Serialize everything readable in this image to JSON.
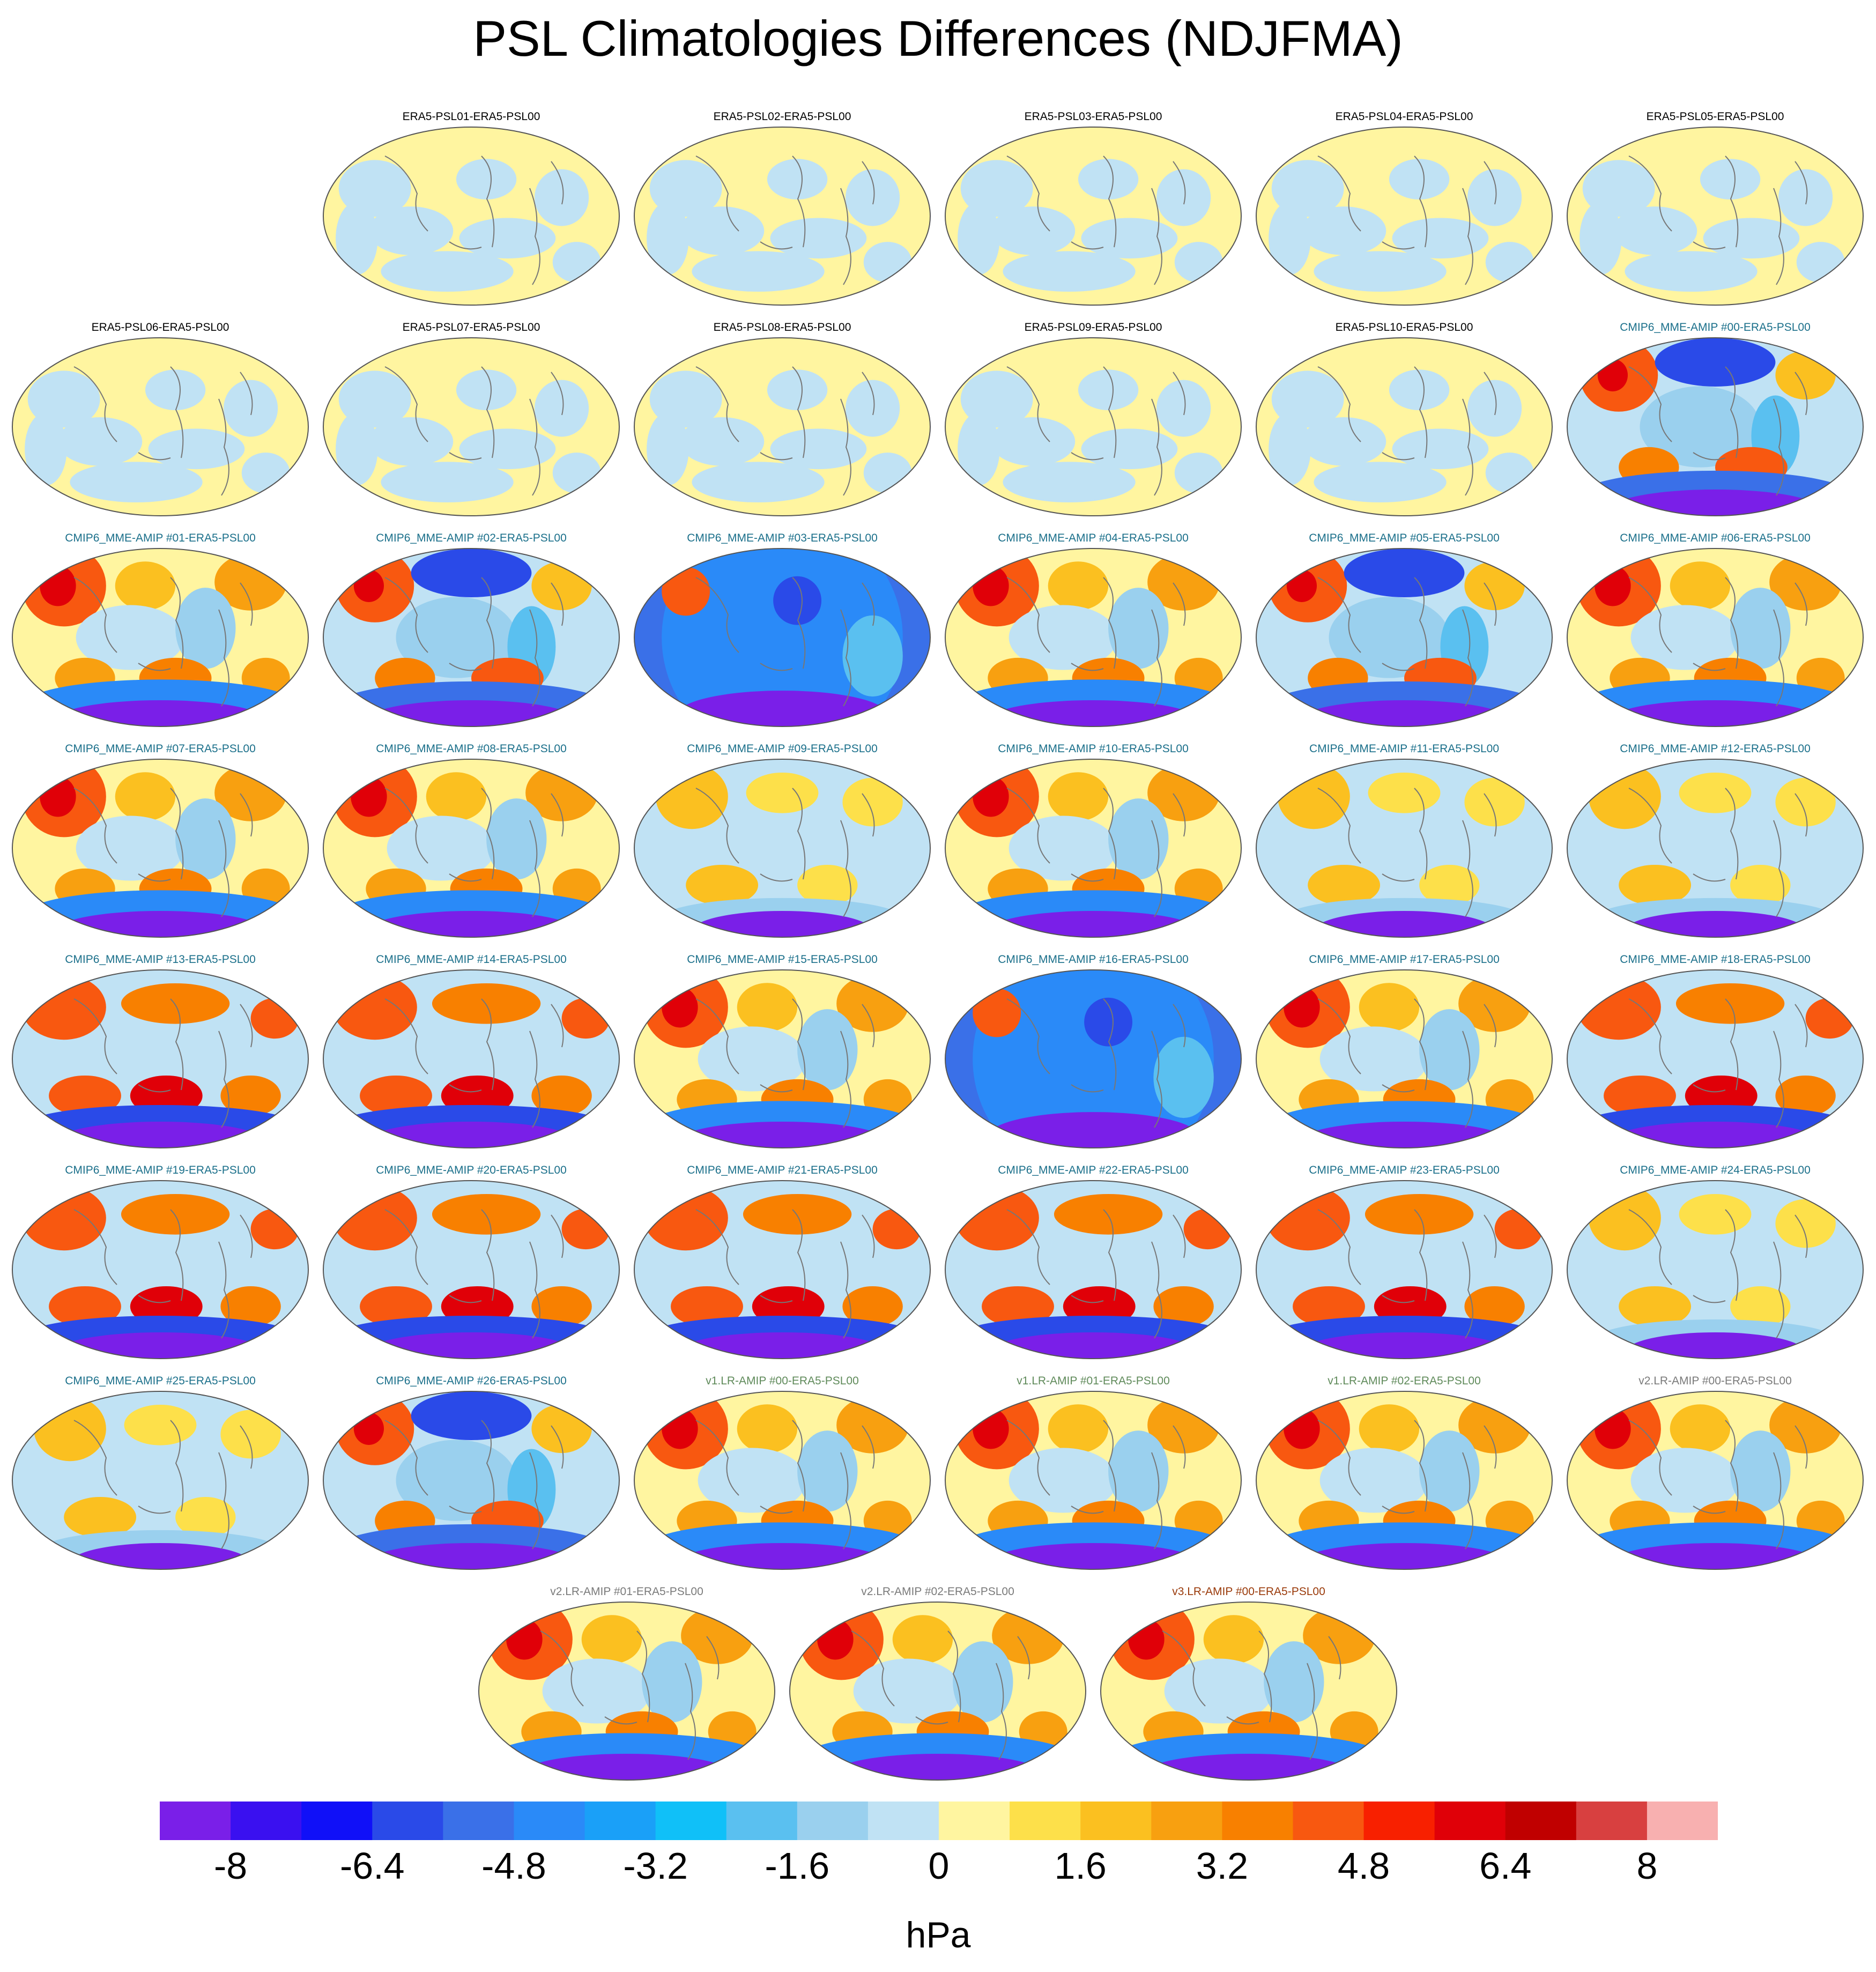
{
  "title": "PSL Climatologies Differences (NDJFMA)",
  "panels": [
    {
      "label": "ERA5-PSL01-ERA5-PSL00",
      "group": "era5"
    },
    {
      "label": "ERA5-PSL02-ERA5-PSL00",
      "group": "era5"
    },
    {
      "label": "ERA5-PSL03-ERA5-PSL00",
      "group": "era5"
    },
    {
      "label": "ERA5-PSL04-ERA5-PSL00",
      "group": "era5"
    },
    {
      "label": "ERA5-PSL05-ERA5-PSL00",
      "group": "era5"
    },
    {
      "label": "ERA5-PSL06-ERA5-PSL00",
      "group": "era5"
    },
    {
      "label": "ERA5-PSL07-ERA5-PSL00",
      "group": "era5"
    },
    {
      "label": "ERA5-PSL08-ERA5-PSL00",
      "group": "era5"
    },
    {
      "label": "ERA5-PSL09-ERA5-PSL00",
      "group": "era5"
    },
    {
      "label": "ERA5-PSL10-ERA5-PSL00",
      "group": "era5"
    },
    {
      "label": "CMIP6_MME-AMIP  #00-ERA5-PSL00",
      "group": "cmip"
    },
    {
      "label": "CMIP6_MME-AMIP  #01-ERA5-PSL00",
      "group": "cmip"
    },
    {
      "label": "CMIP6_MME-AMIP  #02-ERA5-PSL00",
      "group": "cmip"
    },
    {
      "label": "CMIP6_MME-AMIP  #03-ERA5-PSL00",
      "group": "cmip"
    },
    {
      "label": "CMIP6_MME-AMIP  #04-ERA5-PSL00",
      "group": "cmip"
    },
    {
      "label": "CMIP6_MME-AMIP  #05-ERA5-PSL00",
      "group": "cmip"
    },
    {
      "label": "CMIP6_MME-AMIP  #06-ERA5-PSL00",
      "group": "cmip"
    },
    {
      "label": "CMIP6_MME-AMIP  #07-ERA5-PSL00",
      "group": "cmip"
    },
    {
      "label": "CMIP6_MME-AMIP  #08-ERA5-PSL00",
      "group": "cmip"
    },
    {
      "label": "CMIP6_MME-AMIP  #09-ERA5-PSL00",
      "group": "cmip"
    },
    {
      "label": "CMIP6_MME-AMIP  #10-ERA5-PSL00",
      "group": "cmip"
    },
    {
      "label": "CMIP6_MME-AMIP  #11-ERA5-PSL00",
      "group": "cmip"
    },
    {
      "label": "CMIP6_MME-AMIP  #12-ERA5-PSL00",
      "group": "cmip"
    },
    {
      "label": "CMIP6_MME-AMIP  #13-ERA5-PSL00",
      "group": "cmip"
    },
    {
      "label": "CMIP6_MME-AMIP  #14-ERA5-PSL00",
      "group": "cmip"
    },
    {
      "label": "CMIP6_MME-AMIP  #15-ERA5-PSL00",
      "group": "cmip"
    },
    {
      "label": "CMIP6_MME-AMIP  #16-ERA5-PSL00",
      "group": "cmip"
    },
    {
      "label": "CMIP6_MME-AMIP  #17-ERA5-PSL00",
      "group": "cmip"
    },
    {
      "label": "CMIP6_MME-AMIP  #18-ERA5-PSL00",
      "group": "cmip"
    },
    {
      "label": "CMIP6_MME-AMIP  #19-ERA5-PSL00",
      "group": "cmip"
    },
    {
      "label": "CMIP6_MME-AMIP  #20-ERA5-PSL00",
      "group": "cmip"
    },
    {
      "label": "CMIP6_MME-AMIP  #21-ERA5-PSL00",
      "group": "cmip"
    },
    {
      "label": "CMIP6_MME-AMIP  #22-ERA5-PSL00",
      "group": "cmip"
    },
    {
      "label": "CMIP6_MME-AMIP  #23-ERA5-PSL00",
      "group": "cmip"
    },
    {
      "label": "CMIP6_MME-AMIP  #24-ERA5-PSL00",
      "group": "cmip"
    },
    {
      "label": "CMIP6_MME-AMIP  #25-ERA5-PSL00",
      "group": "cmip"
    },
    {
      "label": "CMIP6_MME-AMIP  #26-ERA5-PSL00",
      "group": "cmip"
    },
    {
      "label": "v1.LR-AMIP  #00-ERA5-PSL00",
      "group": "v1"
    },
    {
      "label": "v1.LR-AMIP  #01-ERA5-PSL00",
      "group": "v1"
    },
    {
      "label": "v1.LR-AMIP  #02-ERA5-PSL00",
      "group": "v1"
    },
    {
      "label": "v2.LR-AMIP  #00-ERA5-PSL00",
      "group": "v2"
    },
    {
      "label": "v2.LR-AMIP  #01-ERA5-PSL00",
      "group": "v2"
    },
    {
      "label": "v2.LR-AMIP  #02-ERA5-PSL00",
      "group": "v2"
    },
    {
      "label": "v3.LR-AMIP  #00-ERA5-PSL00",
      "group": "v3"
    }
  ],
  "title_colors": {
    "era5": "#000000",
    "cmip": "#1a6f8a",
    "v1": "#5f8a5a",
    "v2": "#7a7a7a",
    "v3": "#9a3a0a"
  },
  "colorbar": {
    "units": "hPa",
    "tick_labels": [
      "-8",
      "-6.4",
      "-4.8",
      "-3.2",
      "-1.6",
      "0",
      "1.6",
      "3.2",
      "4.8",
      "6.4",
      "8"
    ],
    "colors": [
      "#7a1fe8",
      "#3a10f0",
      "#1010f8",
      "#2a4ae8",
      "#3a70e8",
      "#2a8af8",
      "#1aa0f8",
      "#10c0f8",
      "#5ac0f0",
      "#9ad0ee",
      "#c0e2f4",
      "#fff5a0",
      "#fde04a",
      "#fbc020",
      "#f8a010",
      "#f88000",
      "#f85810",
      "#f82000",
      "#e00008",
      "#c00000",
      "#d84040",
      "#f8b0b0"
    ]
  }
}
